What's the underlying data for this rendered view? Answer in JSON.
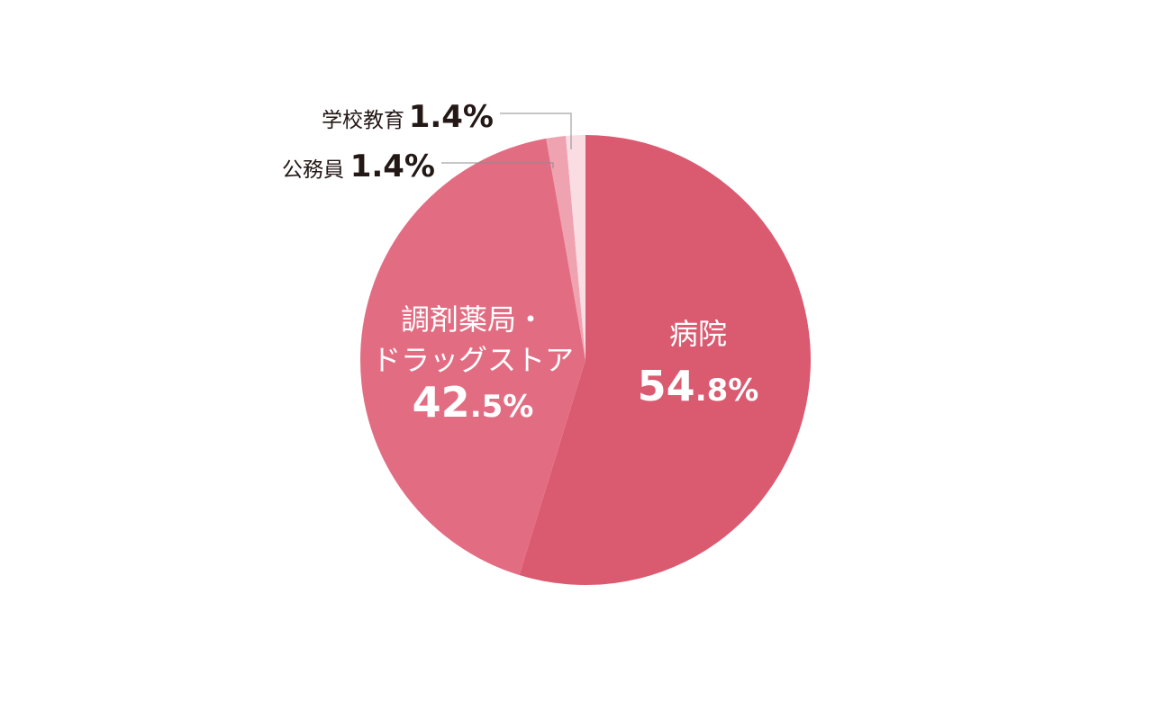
{
  "chart_data": {
    "type": "pie",
    "start": "12 o'clock",
    "direction": "clockwise",
    "slices": [
      {
        "label": "病院",
        "label_lines": [
          "病院"
        ],
        "value": 54.8,
        "value_text_int": "54",
        "value_text_dec": ".8%",
        "color": "#da5a70",
        "label_position": "inside"
      },
      {
        "label": "調剤薬局・ドラッグストア",
        "label_lines": [
          "調剤薬局・",
          "ドラッグストア"
        ],
        "value": 42.5,
        "value_text_int": "42",
        "value_text_dec": ".5%",
        "color": "#e26d82",
        "label_position": "inside"
      },
      {
        "label": "公務員",
        "label_lines": [
          "公務員"
        ],
        "value": 1.4,
        "value_text": "1.4%",
        "color": "#efa2b0",
        "label_position": "outside"
      },
      {
        "label": "学校教育",
        "label_lines": [
          "学校教育"
        ],
        "value": 1.4,
        "value_text": "1.4%",
        "color": "#f9dde2",
        "label_position": "outside"
      }
    ]
  }
}
